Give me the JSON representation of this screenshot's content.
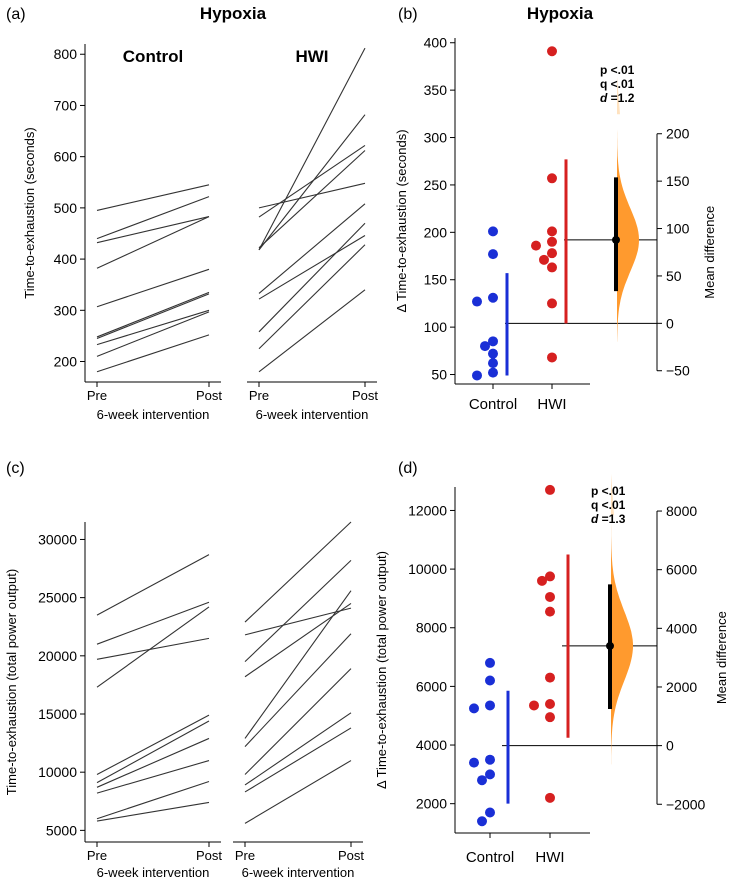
{
  "colors": {
    "control": "#1a2fd6",
    "hwi": "#d62020",
    "line": "#333333",
    "dist": "#ff9a2e",
    "dist_light": "#ffe2bf"
  },
  "chart_data": [
    {
      "id": "a",
      "panel_label": "(a)",
      "title": "Hypoxia",
      "type": "line",
      "ylabel": "Time-to-exhaustion (seconds)",
      "xlabel": "6-week intervention",
      "ylim": [
        160,
        820
      ],
      "yticks": [
        200,
        300,
        400,
        500,
        600,
        700,
        800
      ],
      "categories": [
        "Pre",
        "Post"
      ],
      "groups": [
        {
          "name": "Control",
          "label_color": "#1a2fd6",
          "series": [
            [
              495,
              545
            ],
            [
              440,
              522
            ],
            [
              432,
              483
            ],
            [
              382,
              483
            ],
            [
              307,
              380
            ],
            [
              248,
              335
            ],
            [
              245,
              332
            ],
            [
              233,
              300
            ],
            [
              210,
              297
            ],
            [
              180,
              252
            ]
          ]
        },
        {
          "name": "HWI",
          "label_color": "#d62020",
          "series": [
            [
              500,
              548
            ],
            [
              482,
              622
            ],
            [
              422,
              612
            ],
            [
              418,
              682
            ],
            [
              333,
              508
            ],
            [
              322,
              446
            ],
            [
              258,
              470
            ],
            [
              225,
              428
            ],
            [
              180,
              340
            ],
            [
              418,
              812
            ]
          ]
        }
      ]
    },
    {
      "id": "b",
      "panel_label": "(b)",
      "title": "Hypoxia",
      "type": "estimation",
      "ylabel": "Δ Time-to-exhaustion (seconds)",
      "ylabel_right": "Mean difference",
      "ylim": [
        40,
        405
      ],
      "yticks": [
        50,
        100,
        150,
        200,
        250,
        300,
        350,
        400
      ],
      "diff_ticks": [
        -50,
        0,
        50,
        100,
        150,
        200
      ],
      "categories": [
        "Control",
        "HWI"
      ],
      "points": {
        "Control": [
          201,
          177,
          131,
          127,
          85,
          80,
          72,
          62,
          52,
          49
        ],
        "HWI": [
          391,
          257,
          201,
          190,
          186,
          178,
          171,
          163,
          125,
          68
        ]
      },
      "error_bars": {
        "Control": {
          "low": 49,
          "high": 157
        },
        "HWI": {
          "low": 104,
          "high": 277
        }
      },
      "baseline_mean": 104,
      "mean_difference": 88,
      "ci": [
        34,
        154
      ],
      "stats": {
        "p": "p <.01",
        "q": "q <.01",
        "d_label": "d",
        "d_value": " =1.2"
      }
    },
    {
      "id": "c",
      "panel_label": "(c)",
      "title": "",
      "type": "line",
      "ylabel": "Time-to-exhaustion (total power output)",
      "xlabel": "6-week intervention",
      "ylim": [
        4000,
        31500
      ],
      "yticks": [
        5000,
        10000,
        15000,
        20000,
        25000,
        30000
      ],
      "categories": [
        "Pre",
        "Post"
      ],
      "groups": [
        {
          "name": "",
          "label_color": "#1a2fd6",
          "series": [
            [
              23500,
              28700
            ],
            [
              21000,
              24600
            ],
            [
              19700,
              21500
            ],
            [
              17300,
              24200
            ],
            [
              9800,
              14900
            ],
            [
              9100,
              14400
            ],
            [
              8700,
              12900
            ],
            [
              8200,
              11000
            ],
            [
              6000,
              9200
            ],
            [
              5800,
              7400
            ]
          ]
        },
        {
          "name": "",
          "label_color": "#d62020",
          "series": [
            [
              22900,
              31500
            ],
            [
              21800,
              24100
            ],
            [
              19500,
              28200
            ],
            [
              18200,
              24500
            ],
            [
              12900,
              25600
            ],
            [
              12200,
              21900
            ],
            [
              9800,
              18900
            ],
            [
              8900,
              15100
            ],
            [
              8300,
              13800
            ],
            [
              5600,
              11000
            ]
          ]
        }
      ]
    },
    {
      "id": "d",
      "panel_label": "(d)",
      "title": "",
      "type": "estimation",
      "ylabel": "Δ Time-to-exhaustion (total power output)",
      "ylabel_right": "Mean difference",
      "ylim": [
        1000,
        12800
      ],
      "yticks": [
        2000,
        4000,
        6000,
        8000,
        10000,
        12000
      ],
      "diff_ticks": [
        -2000,
        0,
        2000,
        4000,
        6000,
        8000
      ],
      "categories": [
        "Control",
        "HWI"
      ],
      "points": {
        "Control": [
          6800,
          6200,
          5350,
          5250,
          3500,
          3400,
          3000,
          2800,
          1700,
          1400
        ],
        "HWI": [
          12700,
          9750,
          9600,
          9050,
          8550,
          6300,
          5400,
          5350,
          4950,
          2200
        ]
      },
      "error_bars": {
        "Control": {
          "low": 2000,
          "high": 5850
        },
        "HWI": {
          "low": 4250,
          "high": 10500
        }
      },
      "baseline_mean": 3980,
      "mean_difference": 3400,
      "ci": [
        1250,
        5500
      ],
      "stats": {
        "p": "p <.01",
        "q": "q <.01",
        "d_label": "d",
        "d_value": " =1.3"
      }
    }
  ]
}
